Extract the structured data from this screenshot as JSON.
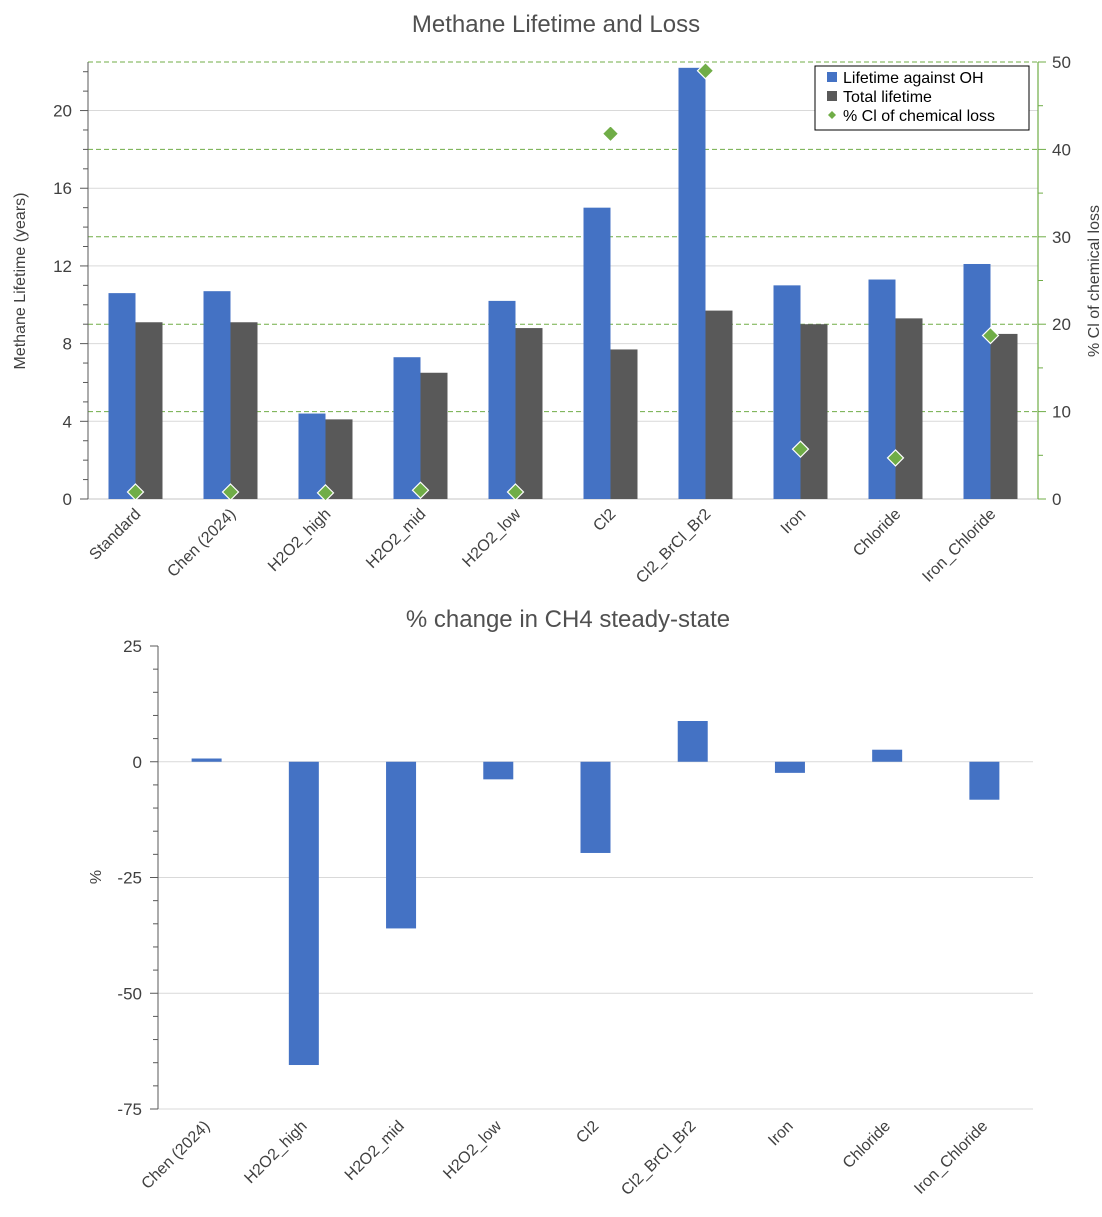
{
  "charts": [
    {
      "type": "bar",
      "title": "Methane Lifetime and Loss",
      "ylabel": "Methane Lifetime (years)",
      "y2label": "% Cl of chemical loss",
      "ylim": [
        0,
        22.5
      ],
      "y_ticks": [
        "0",
        "4",
        "8",
        "12",
        "16",
        "20"
      ],
      "y2lim": [
        0,
        50
      ],
      "y2_ticks": [
        "0",
        "10",
        "20",
        "30",
        "40",
        "50"
      ],
      "categories": [
        "Standard",
        "Chen (2024)",
        "H2O2_high",
        "H2O2_mid",
        "H2O2_low",
        "Cl2",
        "Cl2_BrCl_Br2",
        "Iron",
        "Chloride",
        "Iron_Chloride"
      ],
      "series": [
        {
          "name": "Lifetime against OH",
          "kind": "bar",
          "axis": "left",
          "color": "#4472C4",
          "values": [
            10.6,
            10.7,
            4.4,
            7.3,
            10.2,
            15.0,
            22.2,
            11.0,
            11.3,
            12.1
          ]
        },
        {
          "name": "Total lifetime",
          "kind": "bar",
          "axis": "left",
          "color": "#595959",
          "values": [
            9.1,
            9.1,
            4.1,
            6.5,
            8.8,
            7.7,
            9.7,
            9.0,
            9.3,
            8.5
          ]
        },
        {
          "name": "% Cl of chemical loss",
          "kind": "marker",
          "axis": "right",
          "color": "#70AD47",
          "values": [
            0.8,
            0.8,
            0.7,
            1.0,
            0.8,
            41.8,
            49.0,
            5.7,
            4.7,
            18.7
          ]
        }
      ],
      "grid": true,
      "legend": "top-right"
    },
    {
      "type": "bar",
      "title": "% change in CH4 steady-state",
      "ylabel": "%",
      "ylim": [
        -75,
        25
      ],
      "y_ticks": [
        "25",
        "0",
        "-25",
        "-50",
        "-75"
      ],
      "categories": [
        "Chen (2024)",
        "H2O2_high",
        "H2O2_mid",
        "H2O2_low",
        "Cl2",
        "Cl2_BrCl_Br2",
        "Iron",
        "Chloride",
        "Iron_Chloride"
      ],
      "series": [
        {
          "kind": "bar",
          "color": "#4472C4",
          "values": [
            0.7,
            -65.5,
            -36.0,
            -3.8,
            -19.7,
            8.8,
            -2.4,
            2.6,
            -8.2
          ]
        }
      ],
      "grid": true,
      "legend": "none"
    }
  ]
}
